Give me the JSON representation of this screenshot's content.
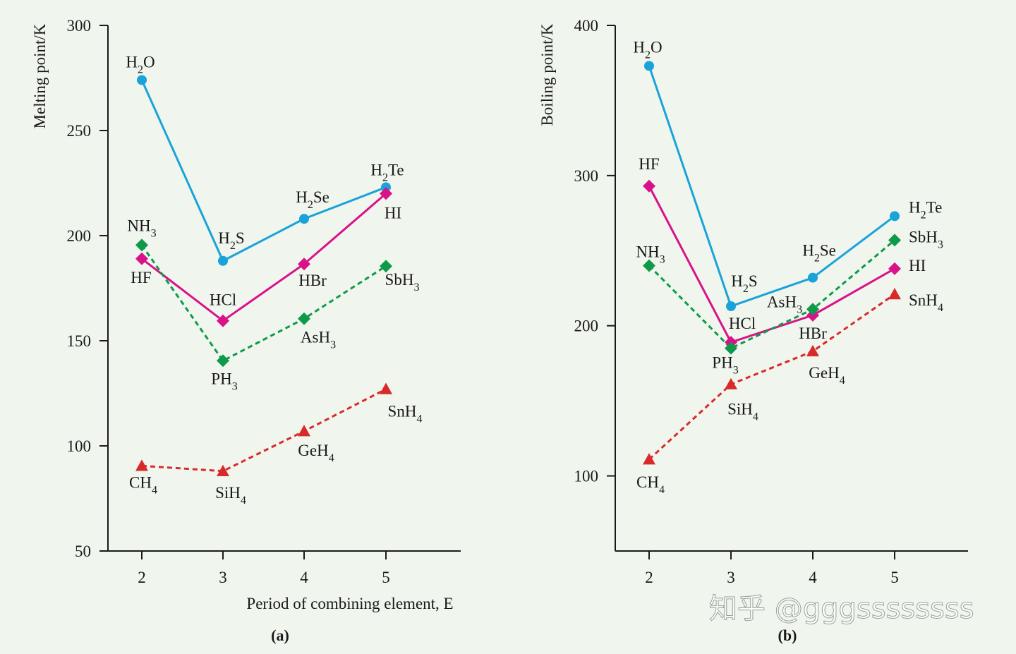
{
  "colors": {
    "blue": "#1aa3d9",
    "magenta": "#d9128a",
    "green": "#0f9a4a",
    "red": "#d92a2a",
    "axis": "#1a1a1a",
    "background": "#f0f5ee"
  },
  "watermark": "知乎 @gggssssssss",
  "chart_data": [
    {
      "type": "line",
      "panel": "(a)",
      "xlabel": "Period of combining element, E",
      "ylabel": "Melting point/K",
      "x": [
        2,
        3,
        4,
        5
      ],
      "xticks": [
        "2",
        "3",
        "4",
        "5"
      ],
      "ylim": [
        50,
        300
      ],
      "yticks": [
        50,
        100,
        150,
        200,
        250,
        300
      ],
      "grid": false,
      "series": [
        {
          "color": "blue",
          "marker": "circle",
          "dashed": false,
          "values": [
            274,
            188,
            208,
            223
          ],
          "labels": [
            [
              "H",
              "2",
              "O"
            ],
            [
              "H",
              "2",
              "S"
            ],
            [
              "H",
              "2",
              "Se"
            ],
            [
              "H",
              "2",
              "Te"
            ]
          ]
        },
        {
          "color": "magenta",
          "marker": "diamond",
          "dashed": false,
          "values": [
            189,
            159.5,
            186.5,
            220
          ],
          "labels": [
            [
              "HF"
            ],
            [
              "HCl"
            ],
            [
              "HBr"
            ],
            [
              "HI"
            ]
          ]
        },
        {
          "color": "green",
          "marker": "diamond",
          "dashed": true,
          "values": [
            195.5,
            140.5,
            160.5,
            185.5
          ],
          "labels": [
            [
              "NH",
              "3",
              ""
            ],
            [
              "PH",
              "3",
              ""
            ],
            [
              "AsH",
              "3",
              ""
            ],
            [
              "SbH",
              "3",
              ""
            ]
          ]
        },
        {
          "color": "red",
          "marker": "triangle",
          "dashed": true,
          "values": [
            90.5,
            88,
            107,
            127
          ],
          "labels": [
            [
              "CH",
              "4",
              ""
            ],
            [
              "SiH",
              "4",
              ""
            ],
            [
              "GeH",
              "4",
              ""
            ],
            [
              "SnH",
              "4",
              ""
            ]
          ]
        }
      ]
    },
    {
      "type": "line",
      "panel": "(b)",
      "xlabel": "",
      "ylabel": "Boiling point/K",
      "x": [
        2,
        3,
        4,
        5
      ],
      "xticks": [
        "2",
        "3",
        "4",
        "5"
      ],
      "ylim": [
        50,
        400
      ],
      "yticks": [
        100,
        200,
        300,
        400
      ],
      "grid": false,
      "series": [
        {
          "color": "blue",
          "marker": "circle",
          "dashed": false,
          "values": [
            373,
            213,
            232,
            273
          ],
          "labels": [
            [
              "H",
              "2",
              "O"
            ],
            [
              "H",
              "2",
              "S"
            ],
            [
              "H",
              "2",
              "Se"
            ],
            [
              "H",
              "2",
              "Te"
            ]
          ]
        },
        {
          "color": "magenta",
          "marker": "diamond",
          "dashed": false,
          "values": [
            293,
            189,
            207,
            238
          ],
          "labels": [
            [
              "HF"
            ],
            [
              "HCl"
            ],
            [
              "HBr"
            ],
            [
              "HI"
            ]
          ]
        },
        {
          "color": "green",
          "marker": "diamond",
          "dashed": true,
          "values": [
            240,
            185,
            211,
            257
          ],
          "labels": [
            [
              "NH",
              "3",
              ""
            ],
            [
              "PH",
              "3",
              ""
            ],
            [
              "AsH",
              "3",
              ""
            ],
            [
              "SbH",
              "3",
              ""
            ]
          ]
        },
        {
          "color": "red",
          "marker": "triangle",
          "dashed": true,
          "values": [
            111,
            161,
            183,
            221
          ],
          "labels": [
            [
              "CH",
              "4",
              ""
            ],
            [
              "SiH",
              "4",
              ""
            ],
            [
              "GeH",
              "4",
              ""
            ],
            [
              "SnH",
              "4",
              ""
            ]
          ]
        }
      ]
    }
  ]
}
